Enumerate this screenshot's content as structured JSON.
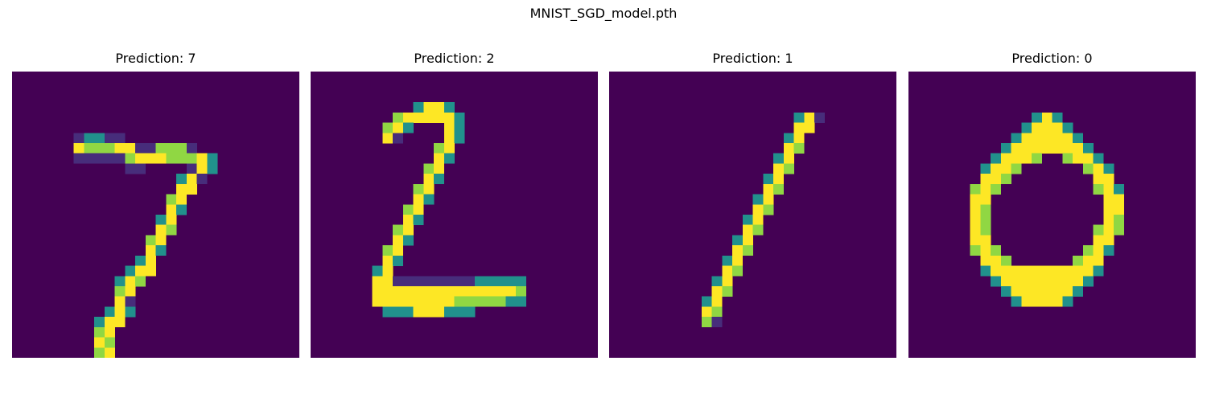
{
  "figure": {
    "suptitle": "MNIST_SGD_model.pth"
  },
  "chart_data": {
    "type": "heatmap",
    "suptitle": "MNIST_SGD_model.pth",
    "colormap": "viridis",
    "colors": {
      "background": "#440154",
      "dark": "#472d7b",
      "mid": "#21918c",
      "light": "#90d743",
      "peak": "#fde725"
    },
    "images": [
      {
        "title": "Prediction: 7",
        "prediction": 7,
        "rows": [
          "............................",
          "............................",
          "............................",
          "............................",
          "............................",
          "............................",
          "......bccbb.................",
          "......ypppyyddllld..........",
          "......aaaabmyyypppyc........",
          "...........ba....ayc........",
          "................cyd.........",
          "................yy..........",
          "...............ly...........",
          "...............yc...........",
          "..............cy............",
          "..............yl............",
          ".............ly.............",
          ".............yc.............",
          "............cy..............",
          "...........cyy..............",
          "..........cyl...............",
          "..........ly................",
          "..........yb................",
          ".........cyc................",
          "........cyy.................",
          "........ly..................",
          "........yl..................",
          "........ly.................."
        ]
      },
      {
        "title": "Prediction: 2",
        "prediction": 2,
        "rows": [
          "............................",
          "............................",
          "............................",
          "..........cyyc..............",
          "........lyyyyyc.............",
          ".......lyc...yc.............",
          ".......yb....yc.............",
          "............ly..............",
          "............yc..............",
          "...........ly...............",
          "...........yc...............",
          "..........ly................",
          "..........yc................",
          ".........ly.................",
          ".........yc.................",
          "........ly..................",
          "........yc..................",
          ".......ly...................",
          ".......yc...................",
          "......cy....................",
          "......yyaaaaaaaaccccc.......",
          "......yyyyyyyyyyyyyyl.......",
          "......yyyyyyyylllllcc.......",
          ".......cccyyyccc............",
          "............................",
          "............................",
          "............................",
          "............................"
        ]
      },
      {
        "title": "Prediction: 1",
        "prediction": 1,
        "rows": [
          "............................",
          "............................",
          "............................",
          "............................",
          "..................cyd.......",
          "..................yy........",
          ".................cy.........",
          ".................yl.........",
          "................cy..........",
          "................yl..........",
          "...............cy...........",
          "...............yl...........",
          "..............cy............",
          "..............yl............",
          ".............cy.............",
          ".............yl.............",
          "............cy..............",
          "............yl..............",
          "...........cy...............",
          "...........yl...............",
          "..........cy................",
          "..........yl................",
          ".........cy.................",
          ".........yl.................",
          ".........lb.................",
          "............................",
          "............................",
          "............................"
        ]
      },
      {
        "title": "Prediction: 0",
        "prediction": 0,
        "rows": [
          "............................",
          "............................",
          "............................",
          "............................",
          "............cyc.............",
          "...........cyyyc............",
          "..........cyyyyyc...........",
          ".........cyyyyyyyc..........",
          "........cyyyl..lyyc.........",
          ".......cyyl......lyc........",
          ".......yyl........yy........",
          "......lyl.........lyc.......",
          "......yy...........yy.......",
          "......yl...........yy.......",
          "......yl...........yl.......",
          "......yl..........lyl.......",
          "......yy..........yy........",
          "......lyl........lyc........",
          ".......yyl......lyy.........",
          ".......cyyyyyyyyyyc.........",
          "........cyyyyyyyyc..........",
          ".........cyyyyyyc...........",
          "..........cyyyyc............",
          "............................",
          "............................",
          "............................",
          "............................",
          "............................"
        ]
      }
    ]
  }
}
